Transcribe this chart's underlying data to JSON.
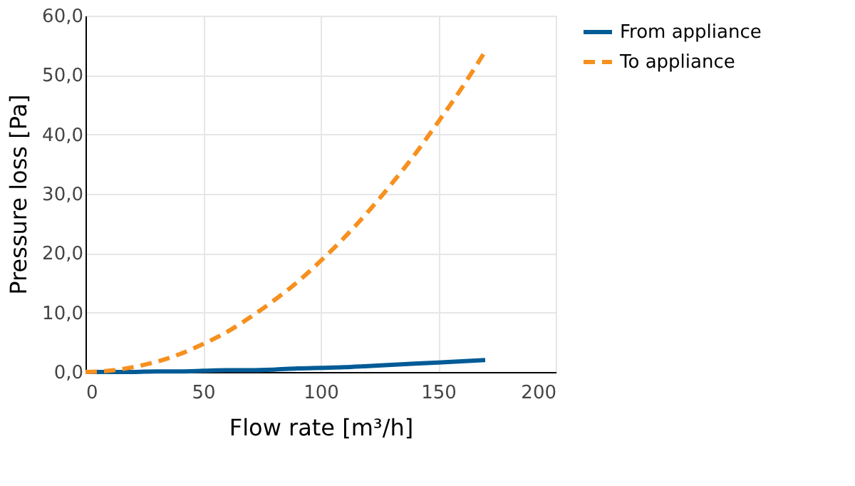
{
  "chart_data": {
    "type": "line",
    "xlabel": "Flow rate [m³/h]",
    "ylabel": "Pressure loss [Pa]",
    "x": [
      0,
      10,
      20,
      30,
      40,
      50,
      60,
      70,
      80,
      90,
      100,
      110,
      120,
      130,
      140,
      150,
      160,
      170
    ],
    "series": [
      {
        "name": "From appliance",
        "color": "#005b96",
        "line_style": "solid",
        "values": [
          0,
          0,
          0,
          0.1,
          0.1,
          0.2,
          0.3,
          0.3,
          0.4,
          0.6,
          0.7,
          0.8,
          1.0,
          1.2,
          1.4,
          1.6,
          1.8,
          2.0
        ]
      },
      {
        "name": "To appliance",
        "color": "#f7901e",
        "line_style": "dashed",
        "values": [
          0,
          0.2,
          0.8,
          1.7,
          3.0,
          4.7,
          6.7,
          9.2,
          12.0,
          15.1,
          18.7,
          22.6,
          26.9,
          31.6,
          36.6,
          42.1,
          47.8,
          54.0
        ]
      }
    ],
    "xlim": [
      0,
      200
    ],
    "xticks": [
      0,
      50,
      100,
      150,
      200
    ],
    "ylim": [
      0,
      60
    ],
    "yticks": [
      {
        "value": 0,
        "label": "0,0"
      },
      {
        "value": 10,
        "label": "10,0"
      },
      {
        "value": 20,
        "label": "20,0"
      },
      {
        "value": 30,
        "label": "30,0"
      },
      {
        "value": 40,
        "label": "40,0"
      },
      {
        "value": 50,
        "label": "50,0"
      },
      {
        "value": 60,
        "label": "60,0"
      }
    ],
    "grid": true,
    "legend": "right",
    "marker": "none"
  }
}
